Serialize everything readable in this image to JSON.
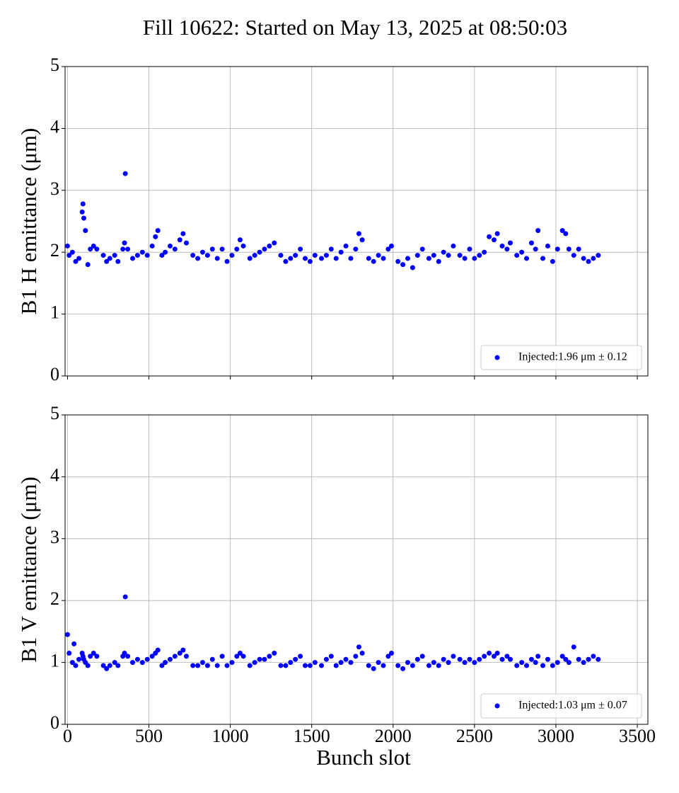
{
  "chart_data": [
    {
      "type": "scatter",
      "title": "Fill 10622: Started on May 13, 2025 at 08:50:03",
      "ylabel": "B1 H emittance (μm)",
      "xlim": [
        -15,
        3565
      ],
      "ylim": [
        0,
        5
      ],
      "xticks": [
        0,
        500,
        1000,
        1500,
        2000,
        2500,
        3000,
        3500
      ],
      "yticks": [
        0,
        1,
        2,
        3,
        4,
        5
      ],
      "grid": true,
      "legend": "lower right",
      "series": [
        {
          "name": "Injected:1.96 μm ± 0.12",
          "color": "#0000ff",
          "x": [
            0,
            10,
            30,
            50,
            70,
            90,
            95,
            100,
            110,
            125,
            140,
            160,
            180,
            220,
            240,
            260,
            290,
            310,
            340,
            350,
            355,
            370,
            400,
            430,
            460,
            490,
            520,
            540,
            555,
            580,
            600,
            630,
            660,
            690,
            710,
            730,
            770,
            800,
            830,
            860,
            890,
            920,
            950,
            980,
            1010,
            1040,
            1060,
            1080,
            1120,
            1150,
            1180,
            1210,
            1240,
            1270,
            1310,
            1340,
            1370,
            1400,
            1430,
            1460,
            1490,
            1520,
            1560,
            1590,
            1620,
            1650,
            1680,
            1710,
            1740,
            1770,
            1790,
            1810,
            1850,
            1880,
            1910,
            1940,
            1970,
            1990,
            2030,
            2060,
            2090,
            2120,
            2150,
            2180,
            2220,
            2250,
            2280,
            2310,
            2340,
            2370,
            2410,
            2440,
            2470,
            2500,
            2530,
            2560,
            2590,
            2620,
            2640,
            2670,
            2700,
            2720,
            2760,
            2790,
            2820,
            2850,
            2875,
            2890,
            2920,
            2950,
            2980,
            3010,
            3040,
            3060,
            3080,
            3110,
            3140,
            3170,
            3200,
            3230,
            3260
          ],
          "values": [
            2.1,
            1.95,
            2.0,
            1.85,
            1.9,
            2.65,
            2.78,
            2.55,
            2.35,
            1.8,
            2.05,
            2.1,
            2.05,
            1.95,
            1.85,
            1.9,
            1.95,
            1.85,
            2.05,
            2.15,
            3.27,
            2.05,
            1.9,
            1.95,
            2.0,
            1.95,
            2.1,
            2.25,
            2.35,
            1.95,
            2.0,
            2.1,
            2.05,
            2.2,
            2.3,
            2.15,
            1.95,
            1.9,
            2.0,
            1.95,
            2.05,
            1.9,
            2.05,
            1.85,
            1.95,
            2.05,
            2.2,
            2.1,
            1.9,
            1.95,
            2.0,
            2.05,
            2.1,
            2.15,
            1.95,
            1.85,
            1.9,
            1.95,
            2.05,
            1.9,
            1.85,
            1.95,
            1.9,
            1.95,
            2.05,
            1.9,
            2.0,
            2.1,
            1.9,
            2.05,
            2.3,
            2.2,
            1.9,
            1.85,
            1.95,
            1.9,
            2.05,
            2.1,
            1.85,
            1.8,
            1.9,
            1.75,
            1.95,
            2.05,
            1.9,
            1.95,
            1.85,
            2.0,
            1.95,
            2.1,
            1.95,
            1.9,
            2.05,
            1.9,
            1.95,
            2.0,
            2.25,
            2.2,
            2.3,
            2.1,
            2.05,
            2.15,
            1.95,
            2.0,
            1.9,
            2.15,
            2.05,
            2.35,
            1.9,
            2.1,
            1.85,
            2.05,
            2.35,
            2.3,
            2.05,
            1.95,
            2.05,
            1.9,
            1.85,
            1.9,
            1.95
          ]
        }
      ]
    },
    {
      "type": "scatter",
      "ylabel": "B1 V emittance (μm)",
      "xlabel": "Bunch slot",
      "xlim": [
        -15,
        3565
      ],
      "ylim": [
        0,
        5
      ],
      "xticks": [
        0,
        500,
        1000,
        1500,
        2000,
        2500,
        3000,
        3500
      ],
      "yticks": [
        0,
        1,
        2,
        3,
        4,
        5
      ],
      "grid": true,
      "legend": "lower right",
      "series": [
        {
          "name": "Injected:1.03 μm ± 0.07",
          "color": "#0000ff",
          "x": [
            0,
            10,
            30,
            40,
            50,
            70,
            90,
            95,
            100,
            110,
            125,
            140,
            160,
            180,
            220,
            240,
            260,
            290,
            310,
            340,
            350,
            355,
            370,
            400,
            430,
            460,
            490,
            520,
            540,
            555,
            580,
            600,
            630,
            660,
            690,
            710,
            730,
            770,
            800,
            830,
            860,
            890,
            920,
            950,
            980,
            1010,
            1040,
            1060,
            1080,
            1120,
            1150,
            1180,
            1210,
            1240,
            1270,
            1310,
            1340,
            1370,
            1400,
            1430,
            1460,
            1490,
            1520,
            1560,
            1590,
            1620,
            1650,
            1680,
            1710,
            1740,
            1770,
            1790,
            1810,
            1850,
            1880,
            1910,
            1940,
            1970,
            1990,
            2030,
            2060,
            2090,
            2120,
            2150,
            2180,
            2220,
            2250,
            2280,
            2310,
            2340,
            2370,
            2410,
            2440,
            2470,
            2500,
            2530,
            2560,
            2590,
            2620,
            2640,
            2670,
            2700,
            2720,
            2760,
            2790,
            2820,
            2850,
            2875,
            2890,
            2920,
            2950,
            2980,
            3010,
            3040,
            3060,
            3080,
            3110,
            3140,
            3170,
            3200,
            3230,
            3260
          ],
          "values": [
            1.45,
            1.15,
            1.0,
            1.3,
            0.95,
            1.05,
            1.15,
            1.1,
            1.05,
            1.0,
            0.95,
            1.1,
            1.15,
            1.1,
            0.95,
            0.9,
            0.95,
            1.0,
            0.95,
            1.1,
            1.15,
            2.06,
            1.1,
            1.0,
            1.05,
            1.0,
            1.05,
            1.1,
            1.15,
            1.2,
            0.95,
            1.0,
            1.05,
            1.1,
            1.15,
            1.2,
            1.1,
            0.95,
            0.95,
            1.0,
            0.95,
            1.05,
            0.95,
            1.1,
            0.95,
            1.0,
            1.1,
            1.15,
            1.1,
            0.95,
            1.0,
            1.05,
            1.05,
            1.1,
            1.15,
            0.95,
            0.95,
            1.0,
            1.05,
            1.1,
            0.95,
            0.95,
            1.0,
            0.95,
            1.05,
            1.1,
            0.95,
            1.0,
            1.05,
            1.0,
            1.1,
            1.25,
            1.15,
            0.95,
            0.9,
            1.0,
            0.95,
            1.1,
            1.15,
            0.95,
            0.9,
            1.0,
            0.95,
            1.05,
            1.1,
            0.95,
            1.0,
            0.95,
            1.05,
            1.0,
            1.1,
            1.05,
            1.0,
            1.05,
            1.0,
            1.05,
            1.1,
            1.15,
            1.1,
            1.15,
            1.05,
            1.1,
            1.05,
            0.95,
            1.0,
            0.95,
            1.05,
            1.0,
            1.1,
            0.95,
            1.05,
            0.95,
            1.0,
            1.1,
            1.05,
            1.0,
            1.25,
            1.05,
            1.0,
            1.05,
            1.1,
            1.05
          ]
        }
      ]
    }
  ]
}
